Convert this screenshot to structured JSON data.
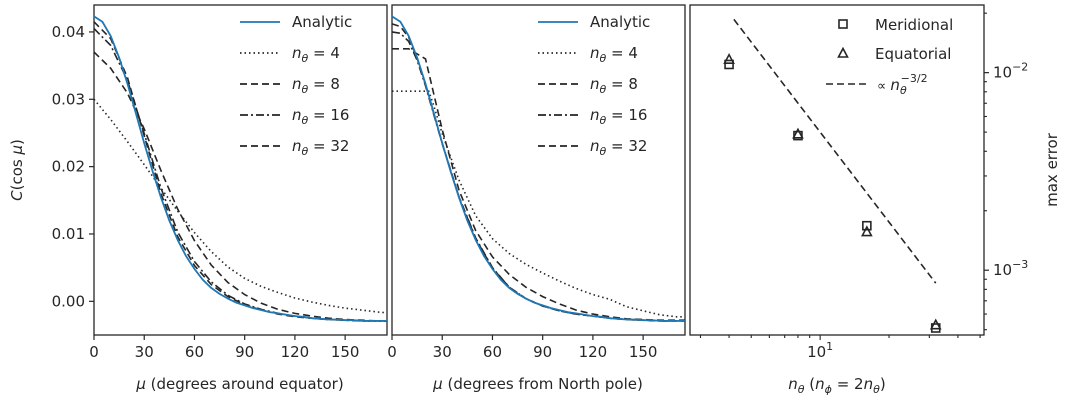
{
  "chart_data": [
    {
      "type": "line",
      "panel": "left",
      "xlabel": "μ (degrees around equator)",
      "ylabel": "C(cos μ)",
      "xlim": [
        0,
        175
      ],
      "ylim": [
        -0.005,
        0.044
      ],
      "xticks": [
        "0",
        "30",
        "60",
        "90",
        "120",
        "150"
      ],
      "yticks": [
        "0.00",
        "0.01",
        "0.02",
        "0.03",
        "0.04"
      ],
      "legend_position": "top-right",
      "series": [
        {
          "name": "Analytic",
          "style": "solid",
          "color": "#1f77b4",
          "x": [
            0,
            5,
            10,
            15,
            20,
            25,
            30,
            35,
            40,
            45,
            50,
            55,
            60,
            65,
            70,
            75,
            80,
            85,
            90,
            95,
            100,
            105,
            110,
            115,
            120,
            125,
            130,
            135,
            140,
            145,
            150,
            155,
            160,
            165,
            170,
            175
          ],
          "y": [
            0.0423,
            0.0415,
            0.0394,
            0.0362,
            0.0323,
            0.0279,
            0.0235,
            0.0193,
            0.0154,
            0.012,
            0.0091,
            0.0067,
            0.0048,
            0.0032,
            0.002,
            0.0011,
            0.0004,
            -0.0002,
            -0.0006,
            -0.001,
            -0.0013,
            -0.0016,
            -0.0018,
            -0.002,
            -0.0022,
            -0.0023,
            -0.0025,
            -0.0026,
            -0.0027,
            -0.0027,
            -0.0028,
            -0.0028,
            -0.0029,
            -0.0029,
            -0.0029,
            -0.0029
          ]
        },
        {
          "name": "n_θ = 4",
          "style": "dotted",
          "color": "#262626",
          "x": [
            0,
            10,
            20,
            30,
            40,
            50,
            60,
            70,
            80,
            90,
            100,
            110,
            120,
            130,
            140,
            150,
            160,
            170,
            175
          ],
          "y": [
            0.03,
            0.027,
            0.0237,
            0.0203,
            0.0168,
            0.0134,
            0.0102,
            0.0074,
            0.0051,
            0.0034,
            0.0022,
            0.0013,
            0.0005,
            -0.0001,
            -0.0006,
            -0.001,
            -0.0013,
            -0.0016,
            -0.0017
          ]
        },
        {
          "name": "n_θ = 8",
          "style": "dashed",
          "color": "#262626",
          "x": [
            0,
            10,
            20,
            30,
            40,
            50,
            60,
            70,
            80,
            90,
            100,
            110,
            120,
            130,
            140,
            150,
            160,
            170,
            175
          ],
          "y": [
            0.037,
            0.0346,
            0.0309,
            0.0256,
            0.0194,
            0.0137,
            0.009,
            0.0054,
            0.0028,
            0.001,
            -0.0003,
            -0.0012,
            -0.0018,
            -0.0022,
            -0.0025,
            -0.0027,
            -0.0028,
            -0.0029,
            -0.0029
          ]
        },
        {
          "name": "n_θ = 16",
          "style": "dashdot",
          "color": "#262626",
          "x": [
            0,
            10,
            20,
            30,
            40,
            50,
            60,
            70,
            80,
            90,
            100,
            110,
            120,
            130,
            140,
            150,
            160,
            170,
            175
          ],
          "y": [
            0.0405,
            0.038,
            0.0328,
            0.0249,
            0.0168,
            0.0103,
            0.0059,
            0.0029,
            0.0009,
            -0.0004,
            -0.0012,
            -0.0018,
            -0.0022,
            -0.0025,
            -0.0027,
            -0.0028,
            -0.0029,
            -0.0029,
            -0.0029
          ]
        },
        {
          "name": "n_θ = 32",
          "style": "dashed",
          "color": "#262626",
          "x": [
            0,
            10,
            20,
            30,
            40,
            50,
            60,
            70,
            80,
            90,
            100,
            110,
            120,
            130,
            140,
            150,
            160,
            170,
            175
          ],
          "y": [
            0.0415,
            0.039,
            0.0332,
            0.0246,
            0.016,
            0.0096,
            0.0053,
            0.0025,
            0.0007,
            -0.0005,
            -0.0013,
            -0.0019,
            -0.0023,
            -0.0025,
            -0.0027,
            -0.0028,
            -0.0029,
            -0.0029,
            -0.0029
          ]
        }
      ]
    },
    {
      "type": "line",
      "panel": "middle",
      "xlabel": "μ (degrees from North pole)",
      "xlim": [
        0,
        175
      ],
      "ylim": [
        -0.005,
        0.044
      ],
      "xticks": [
        "0",
        "30",
        "60",
        "90",
        "120",
        "150"
      ],
      "legend_position": "top-right",
      "series": [
        {
          "name": "Analytic",
          "style": "solid",
          "color": "#1f77b4",
          "x": [
            0,
            5,
            10,
            15,
            20,
            25,
            30,
            35,
            40,
            45,
            50,
            55,
            60,
            65,
            70,
            75,
            80,
            85,
            90,
            95,
            100,
            105,
            110,
            115,
            120,
            125,
            130,
            135,
            140,
            145,
            150,
            155,
            160,
            165,
            170,
            175
          ],
          "y": [
            0.0423,
            0.0415,
            0.0394,
            0.0362,
            0.0323,
            0.0279,
            0.0235,
            0.0193,
            0.0154,
            0.012,
            0.0091,
            0.0067,
            0.0048,
            0.0032,
            0.002,
            0.0011,
            0.0004,
            -0.0002,
            -0.0006,
            -0.001,
            -0.0013,
            -0.0016,
            -0.0018,
            -0.002,
            -0.0022,
            -0.0023,
            -0.0025,
            -0.0026,
            -0.0027,
            -0.0027,
            -0.0028,
            -0.0028,
            -0.0029,
            -0.0029,
            -0.0029,
            -0.0029
          ]
        },
        {
          "name": "n_θ = 4",
          "style": "dotted",
          "color": "#262626",
          "x": [
            0,
            22,
            25,
            30,
            40,
            50,
            60,
            70,
            80,
            90,
            100,
            110,
            120,
            130,
            140,
            150,
            160,
            170,
            175
          ],
          "y": [
            0.0312,
            0.0312,
            0.029,
            0.0249,
            0.018,
            0.0127,
            0.0093,
            0.0071,
            0.0055,
            0.0042,
            0.003,
            0.0019,
            0.001,
            0.0003,
            -0.0008,
            -0.0014,
            -0.002,
            -0.0023,
            -0.0023
          ]
        },
        {
          "name": "n_θ = 8",
          "style": "dashed",
          "color": "#262626",
          "x": [
            0,
            10,
            20,
            30,
            40,
            50,
            60,
            70,
            80,
            90,
            100,
            110,
            120,
            130,
            140,
            150,
            160,
            170,
            175
          ],
          "y": [
            0.0375,
            0.0375,
            0.036,
            0.0255,
            0.0165,
            0.0105,
            0.0066,
            0.004,
            0.0021,
            0.0007,
            -0.0004,
            -0.0013,
            -0.0019,
            -0.0023,
            -0.0026,
            -0.0027,
            -0.0028,
            -0.0028,
            -0.0028
          ]
        },
        {
          "name": "n_θ = 16",
          "style": "dashdot",
          "color": "#262626",
          "x": [
            0,
            5,
            10,
            15,
            20,
            30,
            40,
            50,
            60,
            70,
            80,
            90,
            100,
            110,
            120,
            130,
            140,
            150,
            160,
            170,
            175
          ],
          "y": [
            0.04,
            0.0398,
            0.0386,
            0.0358,
            0.032,
            0.0234,
            0.0155,
            0.0094,
            0.005,
            0.0021,
            0.0004,
            -0.0007,
            -0.0014,
            -0.0019,
            -0.0022,
            -0.0025,
            -0.0027,
            -0.0028,
            -0.0029,
            -0.0029,
            -0.0029
          ]
        },
        {
          "name": "n_θ = 32",
          "style": "dashed",
          "color": "#262626",
          "x": [
            0,
            5,
            10,
            15,
            20,
            30,
            40,
            50,
            60,
            70,
            80,
            90,
            100,
            110,
            120,
            130,
            140,
            150,
            160,
            170,
            175
          ],
          "y": [
            0.0412,
            0.0408,
            0.0392,
            0.0361,
            0.0322,
            0.0235,
            0.0155,
            0.0093,
            0.0049,
            0.0021,
            0.0004,
            -0.0007,
            -0.0014,
            -0.0019,
            -0.0022,
            -0.0025,
            -0.0027,
            -0.0028,
            -0.0029,
            -0.0029,
            -0.0029
          ]
        }
      ]
    },
    {
      "type": "scatter",
      "panel": "right",
      "xlabel": "n_θ (n_φ = 2n_θ)",
      "ylabel": "max error",
      "x_scale": "log",
      "y_scale": "log",
      "xlim": [
        2.7,
        52
      ],
      "ylim": [
        0.00047,
        0.022
      ],
      "xtick_label": "10^1",
      "yticks": [
        "10^-2",
        "10^-3"
      ],
      "legend_position": "top-right",
      "series": [
        {
          "name": "Meridional",
          "marker": "square",
          "x": [
            4,
            8,
            16,
            32
          ],
          "y": [
            0.011,
            0.0048,
            0.00168,
            0.00051
          ]
        },
        {
          "name": "Equatorial",
          "marker": "triangle",
          "x": [
            4,
            8,
            16,
            32
          ],
          "y": [
            0.0117,
            0.0049,
            0.00157,
            0.00053
          ]
        },
        {
          "name": "∝ n_θ^(-3/2)",
          "style": "dashed",
          "x": [
            4.2,
            32
          ],
          "y": [
            0.0186,
            0.00086
          ]
        }
      ]
    }
  ]
}
